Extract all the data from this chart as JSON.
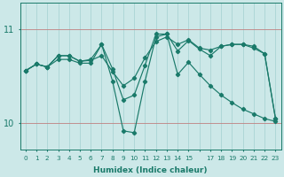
{
  "xlabel": "Humidex (Indice chaleur)",
  "background_color": "#cce8e8",
  "line_color": "#1a7a6a",
  "grid_color_v": "#aad4d4",
  "grid_color_h": "#c08080",
  "yticks": [
    10,
    11
  ],
  "ylim": [
    9.72,
    11.28
  ],
  "xlim": [
    -0.5,
    23.5
  ],
  "xtick_labels": [
    "0",
    "1",
    "2",
    "3",
    "4",
    "5",
    "6",
    "7",
    "8",
    "9",
    "10",
    "11",
    "12",
    "13",
    "14",
    "15",
    "",
    "17",
    "18",
    "19",
    "20",
    "21",
    "22",
    "23"
  ],
  "series": [
    [
      10.56,
      10.63,
      10.6,
      10.72,
      10.72,
      10.66,
      10.67,
      10.72,
      10.55,
      10.4,
      10.48,
      10.7,
      10.87,
      10.92,
      10.84,
      10.89,
      10.8,
      10.78,
      10.82,
      10.84,
      10.84,
      10.82,
      10.74,
      10.05
    ],
    [
      10.56,
      10.63,
      10.6,
      10.72,
      10.72,
      10.66,
      10.68,
      10.84,
      10.58,
      10.25,
      10.3,
      10.62,
      10.95,
      10.95,
      10.77,
      10.88,
      10.79,
      10.72,
      10.82,
      10.84,
      10.84,
      10.8,
      10.74,
      10.05
    ],
    [
      10.56,
      10.63,
      10.6,
      10.68,
      10.68,
      10.64,
      10.64,
      10.84,
      10.45,
      9.92,
      9.9,
      10.45,
      10.92,
      10.95,
      10.52,
      10.65,
      10.52,
      10.4,
      10.3,
      10.22,
      10.15,
      10.1,
      10.05,
      10.02
    ]
  ]
}
